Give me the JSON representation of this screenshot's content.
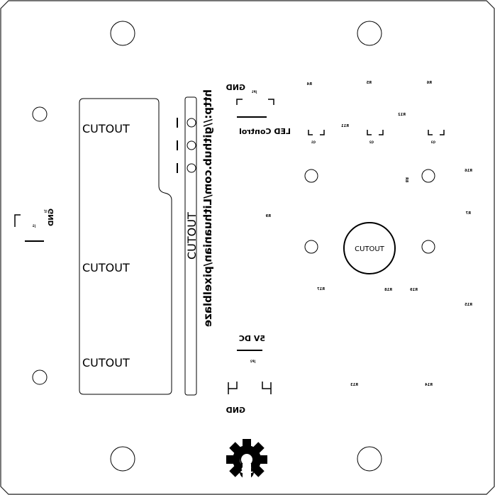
{
  "cutouts": {
    "main_top": "CUTOUT",
    "main_middle": "CUTOUT",
    "main_bottom": "CUTOUT",
    "vertical_slot": "CUTOUT",
    "round_center": "CUTOUT"
  },
  "url_text": "http://github.com/Lithuanian/pixelblaze",
  "connectors": {
    "led_label": "LED Control",
    "led_gnd": "GND",
    "led_ref": "JP1",
    "power_label": "5V DC",
    "power_gnd": "GND",
    "power_ref": "JP2",
    "left_gnd": "GND",
    "left_ref": "J1",
    "left_ref2": "J1"
  },
  "designators": {
    "r4": "R4",
    "r5": "R5",
    "r6": "R6",
    "r12": "R12",
    "r11": "R11",
    "q1": "Q1",
    "q2": "Q2",
    "q3": "Q3",
    "r16": "R16",
    "r8": "R8",
    "r9": "R9",
    "r7": "R7",
    "r17": "R17",
    "r18": "R18",
    "r19": "R19",
    "r15": "R15",
    "r13": "R13",
    "r14": "R14"
  },
  "logo": "open-source-hardware-gear-icon"
}
